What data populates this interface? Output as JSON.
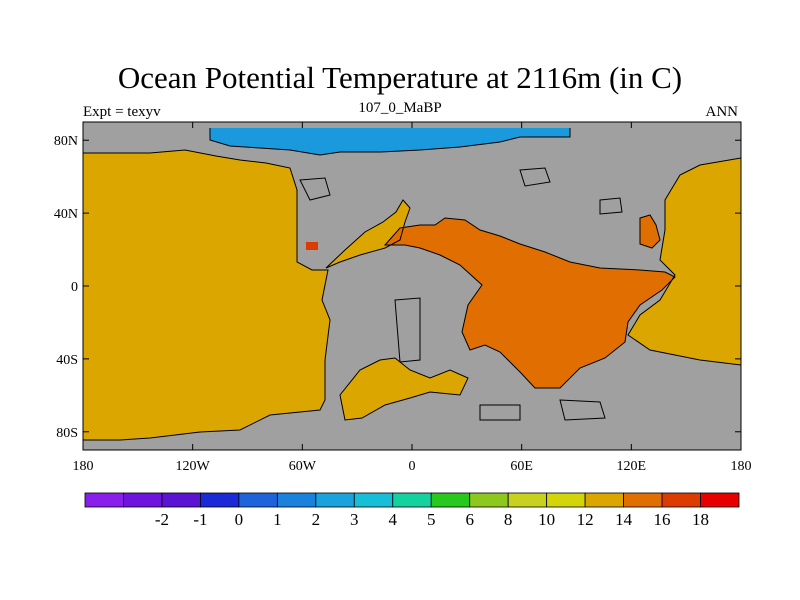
{
  "title": "Ocean Potential Temperature at 2116m (in C)",
  "subtitle_left": "Expt = texyv",
  "subtitle_center": "107_0_MaBP",
  "subtitle_right": "ANN",
  "map": {
    "lon_range": [
      -180,
      180
    ],
    "lat_range": [
      -90,
      90
    ],
    "x_ticks": [
      {
        "lon": -180,
        "label": "180"
      },
      {
        "lon": -120,
        "label": "120W"
      },
      {
        "lon": -60,
        "label": "60W"
      },
      {
        "lon": 0,
        "label": "0"
      },
      {
        "lon": 60,
        "label": "60E"
      },
      {
        "lon": 120,
        "label": "120E"
      },
      {
        "lon": 180,
        "label": "180"
      }
    ],
    "y_ticks": [
      {
        "lat": 80,
        "label": "80N"
      },
      {
        "lat": 40,
        "label": "40N"
      },
      {
        "lat": 0,
        "label": "0"
      },
      {
        "lat": -40,
        "label": "40S"
      },
      {
        "lat": -80,
        "label": "80S"
      }
    ],
    "land_color": "#a0a0a0",
    "coast_color": "#000000"
  },
  "colorbar": {
    "colors": [
      "#8a1eea",
      "#6e14dc",
      "#5a14d2",
      "#1a2ad6",
      "#1e63dc",
      "#1a82dc",
      "#19a2dc",
      "#17bed8",
      "#14d2a0",
      "#28c81e",
      "#8cc81e",
      "#c8d21e",
      "#d4d40a",
      "#dca600",
      "#e06e00",
      "#dc3c00",
      "#e60000"
    ],
    "labels": [
      "-2",
      "-1",
      "0",
      "1",
      "2",
      "3",
      "4",
      "5",
      "6",
      "8",
      "10",
      "12",
      "14",
      "16",
      "18"
    ]
  }
}
